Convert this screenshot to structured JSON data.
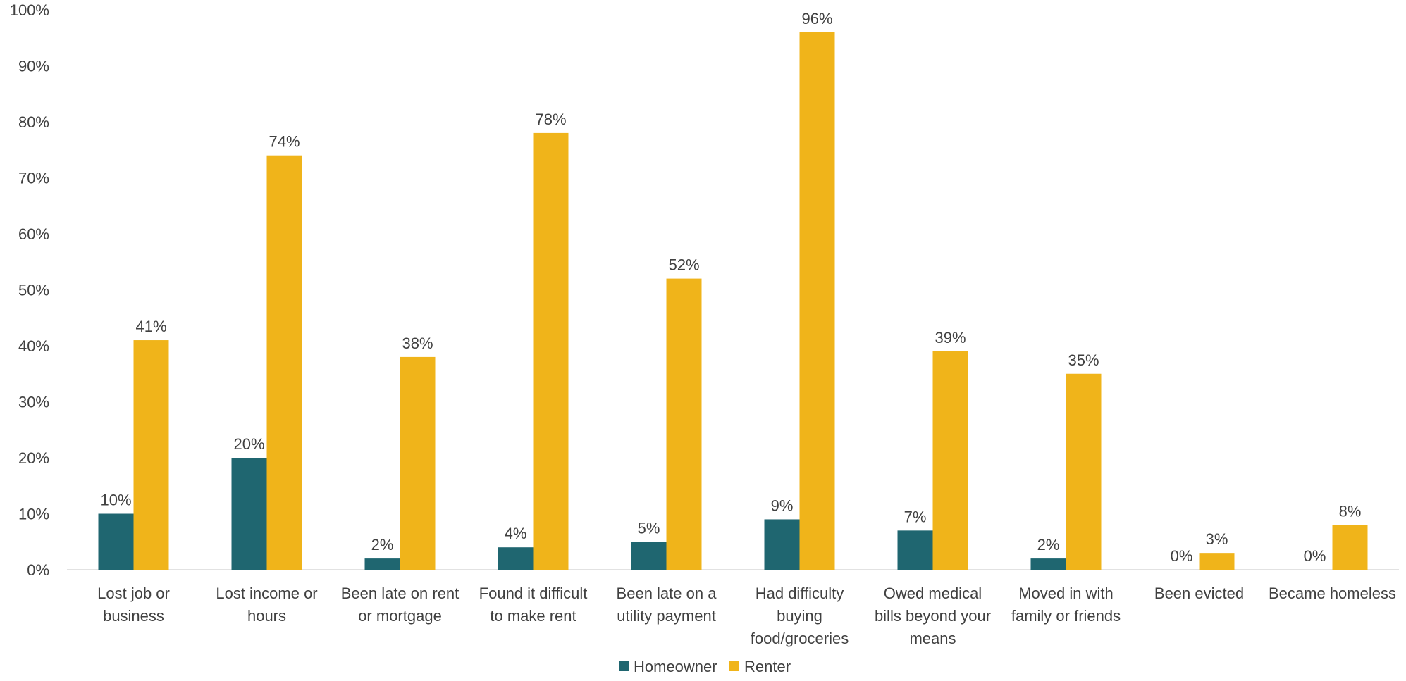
{
  "chart_data": {
    "type": "bar",
    "title": "",
    "xlabel": "",
    "ylabel": "",
    "ylim": [
      0,
      100
    ],
    "ytick_step": 10,
    "ytick_labels": [
      "0%",
      "10%",
      "20%",
      "30%",
      "40%",
      "50%",
      "60%",
      "70%",
      "80%",
      "90%",
      "100%"
    ],
    "grid": false,
    "legend_position": "bottom-center",
    "categories": [
      [
        "Lost job or",
        "business"
      ],
      [
        "Lost income or",
        "hours"
      ],
      [
        "Been late on rent",
        "or mortgage"
      ],
      [
        "Found it difficult",
        "to make rent"
      ],
      [
        "Been late on a",
        "utility payment"
      ],
      [
        "Had difficulty",
        "buying",
        "food/groceries"
      ],
      [
        "Owed medical",
        "bills beyond your",
        "means"
      ],
      [
        "Moved in with",
        "family or friends"
      ],
      [
        "Been evicted"
      ],
      [
        "Became homeless"
      ]
    ],
    "series": [
      {
        "name": "Homeowner",
        "color": "#1f6670",
        "values": [
          10,
          20,
          2,
          4,
          5,
          9,
          7,
          2,
          0,
          0
        ],
        "labels": [
          "10%",
          "20%",
          "2%",
          "4%",
          "5%",
          "9%",
          "7%",
          "2%",
          "0%",
          "0%"
        ]
      },
      {
        "name": "Renter",
        "color": "#f0b41a",
        "values": [
          41,
          74,
          38,
          78,
          52,
          96,
          39,
          35,
          3,
          8
        ],
        "labels": [
          "41%",
          "74%",
          "38%",
          "78%",
          "52%",
          "96%",
          "39%",
          "35%",
          "3%",
          "8%"
        ]
      }
    ],
    "axis_color": "#d9d9d9"
  }
}
